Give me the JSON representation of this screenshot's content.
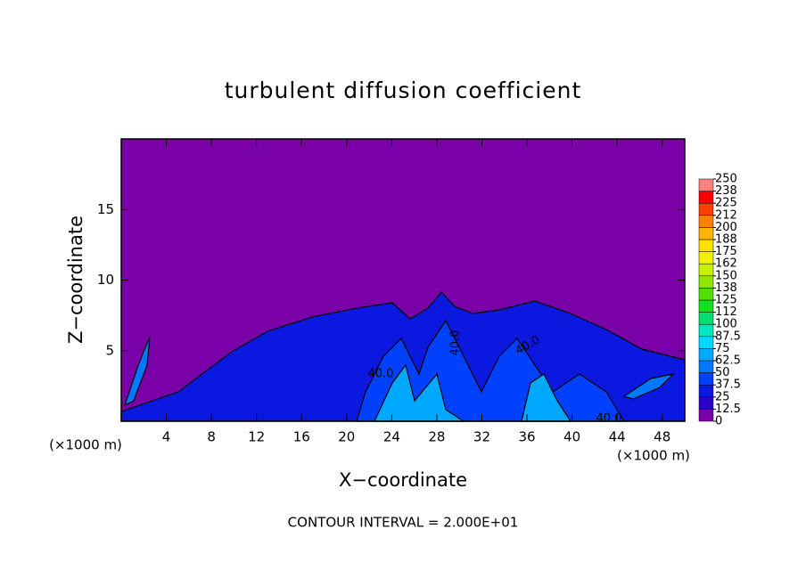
{
  "chart_data": {
    "type": "contour",
    "title": "turbulent diffusion coefficient",
    "x_label": "X−coordinate",
    "y_label": "Z−coordinate",
    "x_unit": "(×1000 m)",
    "y_unit": "(×1000 m)",
    "note": "CONTOUR INTERVAL = 2.000E+01",
    "xlim": [
      0,
      50
    ],
    "ylim": [
      0,
      20
    ],
    "xticks": [
      4,
      8,
      12,
      16,
      20,
      24,
      28,
      32,
      36,
      40,
      44,
      48
    ],
    "yticks": [
      5,
      10,
      15
    ],
    "levels": [
      0,
      12.5,
      25,
      37.5,
      50,
      62.5,
      75,
      87.5,
      100,
      {
        "value": 112.5,
        "label": "112"
      },
      125,
      {
        "value": 137.5,
        "label": "138"
      },
      150,
      {
        "value": 162.5,
        "label": "162"
      },
      175,
      {
        "value": 187.5,
        "label": "188"
      },
      200,
      {
        "value": 212.5,
        "label": "212"
      },
      225,
      {
        "value": 237.5,
        "label": "238"
      },
      250
    ],
    "colors": [
      "#7a00a8",
      "#2a00c8",
      "#0a18e0",
      "#0040ff",
      "#0078ff",
      "#00a8ff",
      "#00d8ff",
      "#00e8c0",
      "#00e070",
      "#10e020",
      "#50e000",
      "#90e800",
      "#c8f000",
      "#f0f000",
      "#ffe000",
      "#ffb400",
      "#ff8000",
      "#ff4000",
      "#ff0000",
      "#ff8080"
    ],
    "contour_labels": [
      "40.0",
      "40.0",
      "40.0",
      "40.0"
    ]
  }
}
